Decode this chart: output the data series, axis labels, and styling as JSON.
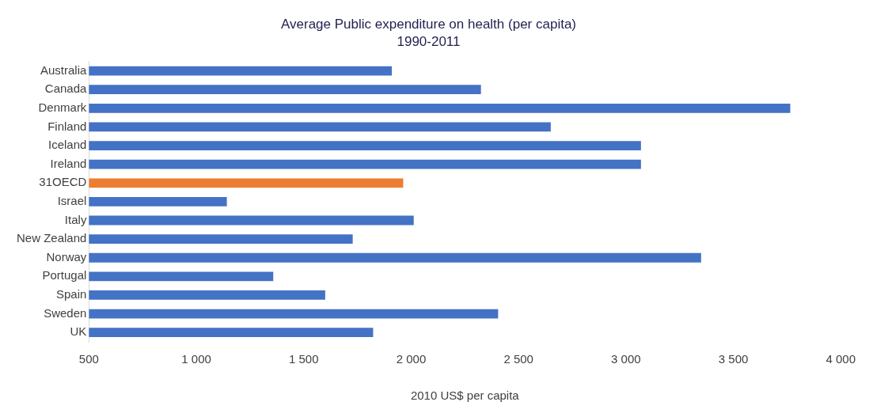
{
  "chart_data": {
    "type": "bar",
    "orientation": "horizontal",
    "title": "Average Public expenditure on health (per capita)",
    "subtitle": "1990-2011",
    "xlabel": "2010 US$ per capita",
    "categories": [
      "Australia",
      "Canada",
      "Denmark",
      "Finland",
      "Iceland",
      "Ireland",
      "31OECD",
      "Israel",
      "Italy",
      "New Zealand",
      "Norway",
      "Portugal",
      "Spain",
      "Sweden",
      "UK"
    ],
    "values": [
      1910,
      2325,
      3765,
      2650,
      3070,
      3070,
      1963,
      1142,
      2012,
      1728,
      3350,
      1358,
      1600,
      2405,
      1823
    ],
    "colors": [
      "#4472c4",
      "#4472c4",
      "#4472c4",
      "#4472c4",
      "#4472c4",
      "#4472c4",
      "#ed7d31",
      "#4472c4",
      "#4472c4",
      "#4472c4",
      "#4472c4",
      "#4472c4",
      "#4472c4",
      "#4472c4",
      "#4472c4"
    ],
    "xlim": [
      500,
      4000
    ],
    "xticks": [
      {
        "value": 500,
        "label": "500"
      },
      {
        "value": 1000,
        "label": "1 000"
      },
      {
        "value": 1500,
        "label": "1 500"
      },
      {
        "value": 2000,
        "label": "2 000"
      },
      {
        "value": 2500,
        "label": "2 500"
      },
      {
        "value": 3000,
        "label": "3 000"
      },
      {
        "value": 3500,
        "label": "3 500"
      },
      {
        "value": 4000,
        "label": "4 000"
      }
    ],
    "grid": false,
    "legend": false
  }
}
